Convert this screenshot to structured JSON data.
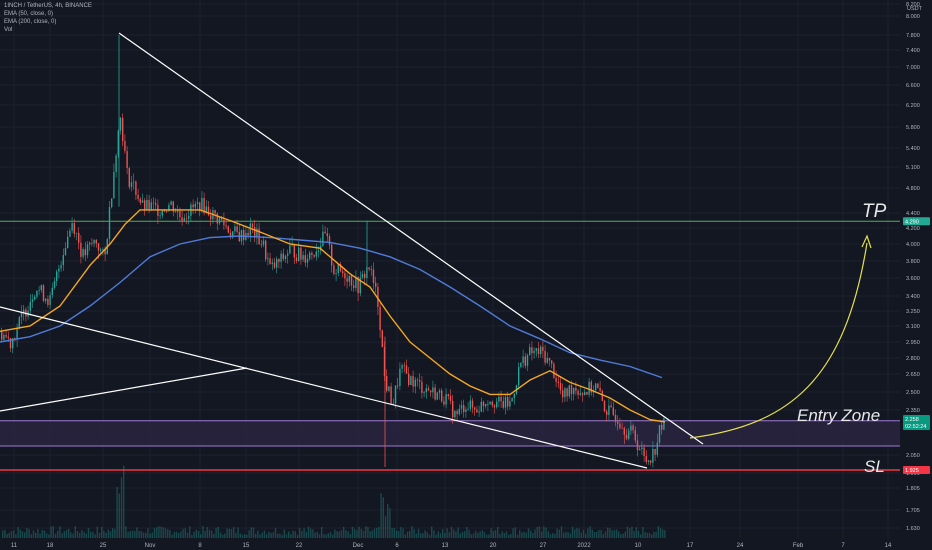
{
  "header": {
    "symbol_line": "1INCH / TetherUS, 4h, BINANCE",
    "indicators": [
      "EMA (50, close, 0)",
      "EMA (200, close, 0)",
      "Vol"
    ]
  },
  "price_axis": {
    "unit": "USDT",
    "ticks": [
      "8.200",
      "8.000",
      "7.800",
      "7.400",
      "7.000",
      "6.600",
      "6.200",
      "5.800",
      "5.400",
      "5.100",
      "4.800",
      "4.400",
      "4.200",
      "4.000",
      "3.800",
      "3.600",
      "3.400",
      "3.250",
      "3.100",
      "2.950",
      "2.800",
      "2.650",
      "2.500",
      "2.350",
      "2.200",
      "2.050",
      "1.900",
      "1.805",
      "1.705",
      "1.630"
    ],
    "markers": [
      {
        "label": "4.290",
        "color": "#22ab94",
        "text_color": "#ffffff"
      },
      {
        "label": "2.258",
        "color": "#089981",
        "text_color": "#ffffff"
      },
      {
        "label": "02:52:24",
        "color": "#089981",
        "text_color": "#ffffff"
      },
      {
        "label": "1.925",
        "color": "#f23645",
        "text_color": "#ffffff"
      }
    ]
  },
  "time_axis": {
    "ticks": [
      "11",
      "18",
      "25",
      "Nov",
      "8",
      "15",
      "22",
      "Dec",
      "6",
      "13",
      "20",
      "27",
      "2022",
      "10",
      "17",
      "24",
      "Feb",
      "7",
      "14"
    ]
  },
  "annotations": {
    "tp": "TP",
    "entry": "Entry Zone",
    "sl": "SL"
  },
  "colors": {
    "background": "#131722",
    "grid": "#1e222d",
    "up": "#26a69a",
    "down": "#ef5350",
    "ema50": "#f5a623",
    "ema200": "#4f7bd9",
    "tp_line": "#4caf50",
    "sl_line": "#f23645",
    "entry_line": "#9c7bd1",
    "curve_arrow": "#e6e04a",
    "trendline": "#ffffff"
  },
  "chart_data": {
    "type": "candlestick",
    "pair": "1INCH / TetherUS",
    "timeframe": "4h",
    "exchange": "BINANCE",
    "levels": {
      "tp": 4.29,
      "entry_top": 2.26,
      "entry_bottom": 2.1,
      "sl": 1.925
    },
    "last_price": 2.258,
    "countdown": "02:52:24",
    "price_range": [
      1.6,
      8.3
    ],
    "series": [
      {
        "name": "EMA (50, close, 0)",
        "color": "#f5a623"
      },
      {
        "name": "EMA (200, close, 0)",
        "color": "#4f7bd9"
      }
    ],
    "price_path": [
      [
        0,
        3.05
      ],
      [
        10,
        2.95
      ],
      [
        22,
        3.2
      ],
      [
        35,
        3.5
      ],
      [
        50,
        3.35
      ],
      [
        62,
        3.9
      ],
      [
        72,
        4.3
      ],
      [
        82,
        3.85
      ],
      [
        95,
        4.05
      ],
      [
        104,
        3.8
      ],
      [
        110,
        4.6
      ],
      [
        116,
        5.5
      ],
      [
        120,
        6.0
      ],
      [
        126,
        5.0
      ],
      [
        134,
        4.8
      ],
      [
        142,
        4.5
      ],
      [
        150,
        4.5
      ],
      [
        160,
        4.45
      ],
      [
        170,
        4.55
      ],
      [
        180,
        4.35
      ],
      [
        190,
        4.45
      ],
      [
        200,
        4.55
      ],
      [
        210,
        4.4
      ],
      [
        220,
        4.3
      ],
      [
        230,
        4.15
      ],
      [
        240,
        4.1
      ],
      [
        250,
        4.2
      ],
      [
        262,
        4.0
      ],
      [
        270,
        3.7
      ],
      [
        280,
        3.8
      ],
      [
        290,
        3.95
      ],
      [
        300,
        3.85
      ],
      [
        312,
        3.9
      ],
      [
        325,
        4.1
      ],
      [
        333,
        3.7
      ],
      [
        345,
        3.65
      ],
      [
        358,
        3.5
      ],
      [
        368,
        3.75
      ],
      [
        378,
        3.3
      ],
      [
        384,
        2.6
      ],
      [
        392,
        2.4
      ],
      [
        400,
        2.7
      ],
      [
        410,
        2.6
      ],
      [
        420,
        2.55
      ],
      [
        432,
        2.5
      ],
      [
        445,
        2.45
      ],
      [
        455,
        2.3
      ],
      [
        465,
        2.4
      ],
      [
        475,
        2.35
      ],
      [
        488,
        2.45
      ],
      [
        500,
        2.4
      ],
      [
        510,
        2.4
      ],
      [
        520,
        2.75
      ],
      [
        530,
        2.85
      ],
      [
        542,
        2.85
      ],
      [
        552,
        2.7
      ],
      [
        562,
        2.45
      ],
      [
        572,
        2.55
      ],
      [
        582,
        2.5
      ],
      [
        595,
        2.55
      ],
      [
        605,
        2.35
      ],
      [
        615,
        2.3
      ],
      [
        625,
        2.2
      ],
      [
        635,
        2.15
      ],
      [
        645,
        2.0
      ],
      [
        652,
        2.05
      ],
      [
        660,
        2.2
      ],
      [
        665,
        2.26
      ]
    ],
    "ema50": [
      [
        0,
        3.05
      ],
      [
        30,
        3.1
      ],
      [
        60,
        3.3
      ],
      [
        90,
        3.75
      ],
      [
        110,
        4.0
      ],
      [
        125,
        4.25
      ],
      [
        140,
        4.45
      ],
      [
        170,
        4.45
      ],
      [
        200,
        4.45
      ],
      [
        230,
        4.3
      ],
      [
        260,
        4.15
      ],
      [
        290,
        4.0
      ],
      [
        320,
        3.95
      ],
      [
        350,
        3.65
      ],
      [
        370,
        3.5
      ],
      [
        390,
        3.2
      ],
      [
        410,
        2.95
      ],
      [
        430,
        2.8
      ],
      [
        450,
        2.65
      ],
      [
        470,
        2.55
      ],
      [
        490,
        2.48
      ],
      [
        510,
        2.48
      ],
      [
        530,
        2.6
      ],
      [
        550,
        2.68
      ],
      [
        570,
        2.58
      ],
      [
        590,
        2.52
      ],
      [
        610,
        2.45
      ],
      [
        630,
        2.35
      ],
      [
        650,
        2.27
      ],
      [
        665,
        2.25
      ]
    ],
    "ema200": [
      [
        0,
        2.95
      ],
      [
        30,
        3.0
      ],
      [
        60,
        3.1
      ],
      [
        90,
        3.3
      ],
      [
        120,
        3.55
      ],
      [
        150,
        3.85
      ],
      [
        180,
        4.0
      ],
      [
        210,
        4.08
      ],
      [
        240,
        4.1
      ],
      [
        270,
        4.08
      ],
      [
        300,
        4.05
      ],
      [
        330,
        4.02
      ],
      [
        360,
        3.95
      ],
      [
        390,
        3.85
      ],
      [
        420,
        3.7
      ],
      [
        450,
        3.5
      ],
      [
        480,
        3.3
      ],
      [
        510,
        3.1
      ],
      [
        540,
        2.98
      ],
      [
        570,
        2.85
      ],
      [
        600,
        2.78
      ],
      [
        630,
        2.72
      ],
      [
        662,
        2.62
      ]
    ]
  }
}
